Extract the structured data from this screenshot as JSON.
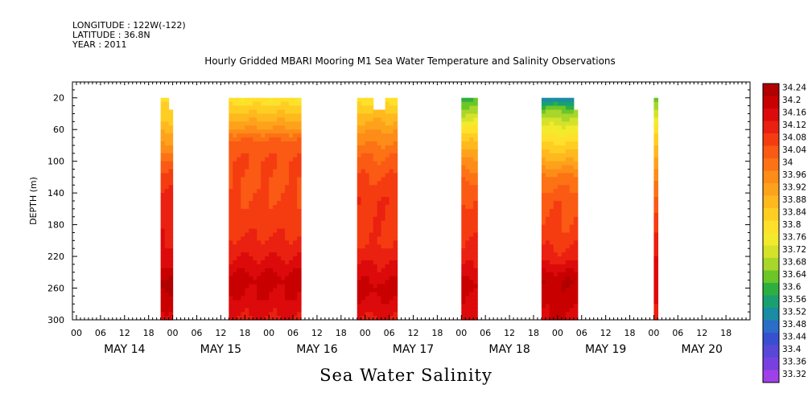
{
  "header": {
    "longitude": "LONGITUDE : 122W(-122)",
    "latitude": "LATITUDE : 36.8N",
    "year": "YEAR : 2011",
    "title": "Hourly Gridded MBARI Mooring M1 Sea Water Temperature and Salinity Observations"
  },
  "footer": {
    "variable": "Sea Water Salinity"
  },
  "chart_data": {
    "type": "heatmap",
    "title": "Hourly Gridded MBARI Mooring M1 Sea Water Temperature and Salinity Observations",
    "xlabel": "",
    "ylabel": "DEPTH (m)",
    "ylim": [
      300,
      0
    ],
    "y_ticks": [
      20,
      60,
      100,
      140,
      180,
      220,
      260,
      300
    ],
    "x_hour_ticks": [
      "00",
      "06",
      "12",
      "18"
    ],
    "x_day_labels": [
      "MAY 14",
      "MAY 15",
      "MAY 16",
      "MAY 17",
      "MAY 18",
      "MAY 19",
      "MAY 20"
    ],
    "x_range_hours": [
      -1,
      168
    ],
    "colorbar": {
      "levels": [
        "34.24",
        "34.2",
        "34.16",
        "34.12",
        "34.08",
        "34.04",
        "34",
        "33.96",
        "33.92",
        "33.88",
        "33.84",
        "33.8",
        "33.76",
        "33.72",
        "33.68",
        "33.64",
        "33.6",
        "33.56",
        "33.52",
        "33.48",
        "33.44",
        "33.4",
        "33.36",
        "33.32"
      ],
      "colors": [
        "#b00000",
        "#c80000",
        "#dc0a0a",
        "#ea2010",
        "#f53c10",
        "#fa5a14",
        "#fc7214",
        "#fd8c18",
        "#fea21c",
        "#ffb81e",
        "#ffce22",
        "#ffe02a",
        "#f4ea2c",
        "#d4e22a",
        "#a8d62a",
        "#6cc628",
        "#2eb040",
        "#1aa070",
        "#1a8ca4",
        "#2a6ec8",
        "#3850d0",
        "#5848d8",
        "#7840e0",
        "#a040e8"
      ]
    },
    "series": [
      {
        "start_hour": 21,
        "end_hour": 24,
        "top_depth": [
          20,
          20,
          35,
          35
        ],
        "profile": [
          [
            20,
            33.8
          ],
          [
            50,
            33.85
          ],
          [
            80,
            33.95
          ],
          [
            110,
            34.05
          ],
          [
            150,
            34.1
          ],
          [
            200,
            34.12
          ],
          [
            230,
            34.16
          ],
          [
            255,
            34.22
          ],
          [
            300,
            34.14
          ]
        ]
      },
      {
        "start_hour": 38,
        "end_hour": 56,
        "top_depth": [
          20,
          20
        ],
        "profile": [
          [
            20,
            33.78
          ],
          [
            35,
            33.84
          ],
          [
            55,
            33.92
          ],
          [
            75,
            34.02
          ],
          [
            100,
            34.05
          ],
          [
            130,
            34.04
          ],
          [
            160,
            34.06
          ],
          [
            190,
            34.08
          ],
          [
            220,
            34.12
          ],
          [
            250,
            34.18
          ],
          [
            270,
            34.16
          ],
          [
            300,
            34.12
          ]
        ]
      },
      {
        "start_hour": 70,
        "end_hour": 80,
        "top_depth": [
          20,
          20,
          20,
          20,
          35,
          35,
          35,
          20,
          20,
          20
        ],
        "profile": [
          [
            20,
            33.8
          ],
          [
            40,
            33.86
          ],
          [
            60,
            33.93
          ],
          [
            90,
            34
          ],
          [
            120,
            34.05
          ],
          [
            150,
            34.08
          ],
          [
            200,
            34.08
          ],
          [
            240,
            34.14
          ],
          [
            260,
            34.18
          ],
          [
            300,
            34.12
          ]
        ]
      },
      {
        "start_hour": 96,
        "end_hour": 100,
        "top_depth": [
          20,
          20
        ],
        "profile": [
          [
            20,
            33.62
          ],
          [
            45,
            33.72
          ],
          [
            70,
            33.84
          ],
          [
            100,
            33.94
          ],
          [
            130,
            34.02
          ],
          [
            160,
            34.06
          ],
          [
            200,
            34.08
          ],
          [
            230,
            34.12
          ],
          [
            255,
            34.18
          ],
          [
            300,
            34.14
          ]
        ]
      },
      {
        "start_hour": 116,
        "end_hour": 125,
        "top_depth": [
          20,
          20,
          20,
          20,
          20,
          20,
          20,
          20,
          35
        ],
        "profile": [
          [
            20,
            33.5
          ],
          [
            35,
            33.66
          ],
          [
            60,
            33.76
          ],
          [
            90,
            33.86
          ],
          [
            120,
            33.98
          ],
          [
            150,
            34.04
          ],
          [
            190,
            34.06
          ],
          [
            220,
            34.1
          ],
          [
            250,
            34.2
          ],
          [
            300,
            34.16
          ]
        ]
      },
      {
        "start_hour": 144,
        "end_hour": 145,
        "top_depth": [
          20
        ],
        "profile": [
          [
            20,
            33.66
          ],
          [
            50,
            33.76
          ],
          [
            90,
            33.88
          ],
          [
            130,
            34
          ],
          [
            170,
            34.06
          ],
          [
            210,
            34.1
          ],
          [
            250,
            34.16
          ],
          [
            300,
            34.12
          ]
        ]
      }
    ]
  }
}
